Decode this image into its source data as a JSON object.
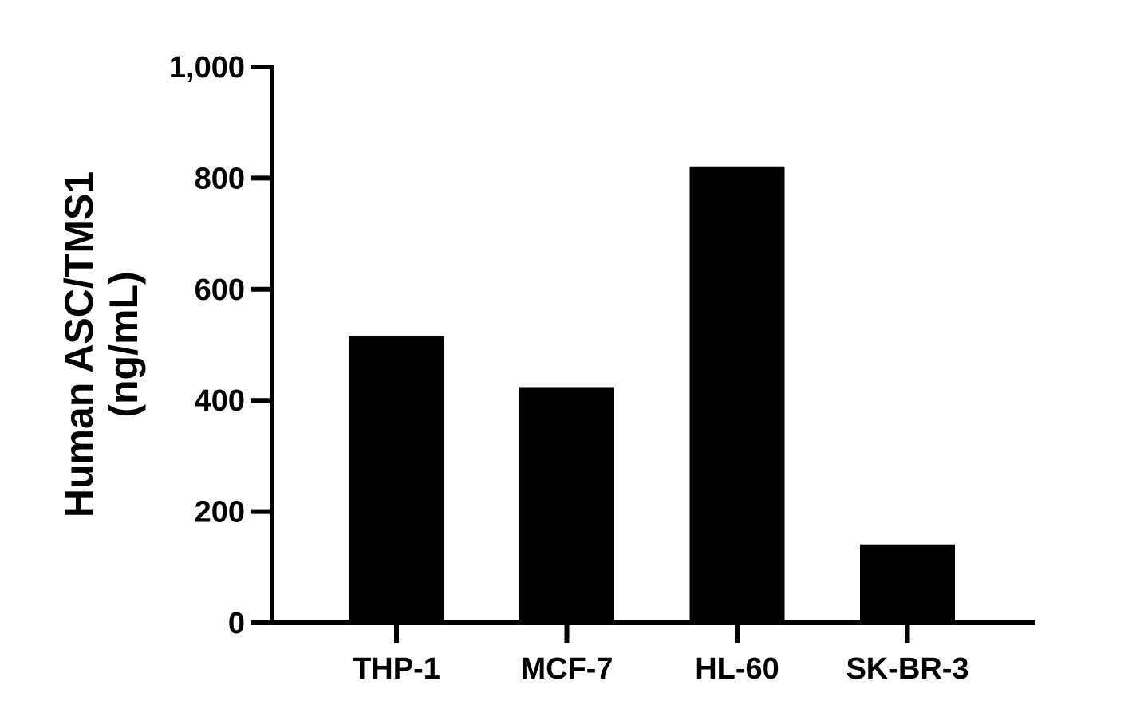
{
  "chart_data": {
    "type": "bar",
    "title": "",
    "xlabel": "",
    "ylabel_lines": [
      "Human ASC/TMS1",
      "(ng/mL)"
    ],
    "categories": [
      "THP-1",
      "MCF-7",
      "HL-60",
      "SK-BR-3"
    ],
    "values": [
      515,
      424,
      821,
      141
    ],
    "ylim": [
      0,
      1000
    ],
    "yticks": [
      0,
      200,
      400,
      600,
      800,
      1000
    ],
    "ytick_labels": [
      "0",
      "200",
      "400",
      "600",
      "800",
      "1,000"
    ],
    "grid": false,
    "legend": "none",
    "bar_color": "#000000"
  }
}
